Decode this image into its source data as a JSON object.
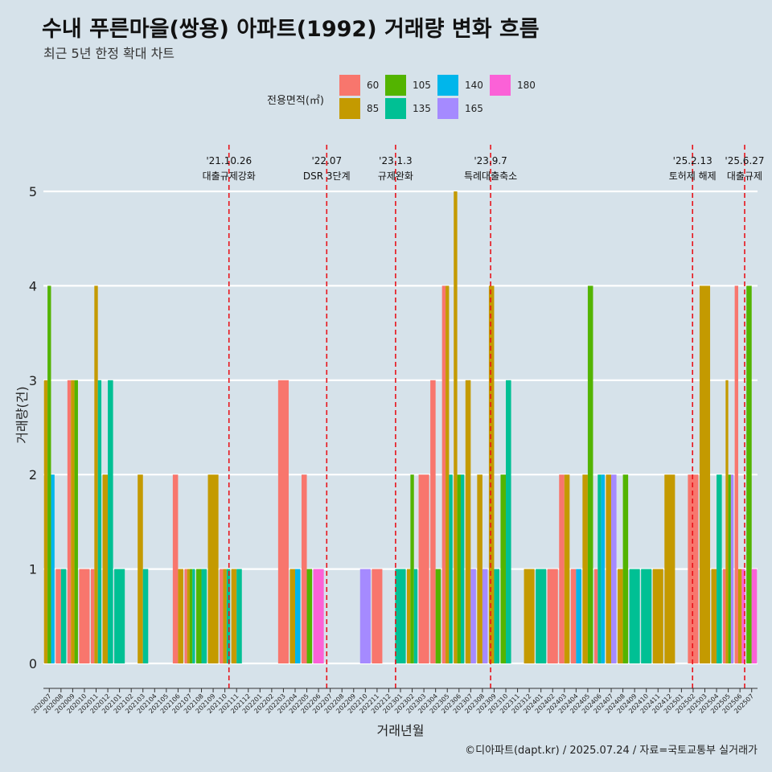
{
  "title": "수내 푸른마을(쌍용) 아파트(1992) 거래량 변화 흐름",
  "subtitle": "최근 5년 한정 확대 차트",
  "caption": "©디아파트(dapt.kr) / 2025.07.24 / 자료=국토교통부 실거래가",
  "legend": {
    "title": "전용면적(㎡)",
    "items": [
      {
        "label": "60",
        "color": "#f8766d"
      },
      {
        "label": "85",
        "color": "#c49a00"
      },
      {
        "label": "105",
        "color": "#53b400"
      },
      {
        "label": "135",
        "color": "#00c094"
      },
      {
        "label": "140",
        "color": "#00b6eb"
      },
      {
        "label": "165",
        "color": "#a58aff"
      },
      {
        "label": "180",
        "color": "#fb61d7"
      }
    ]
  },
  "chart_data": {
    "type": "bar",
    "xlabel": "거래년월",
    "ylabel": "거래량(건)",
    "ylim": [
      0,
      5
    ],
    "yticks": [
      0,
      1,
      2,
      3,
      4,
      5
    ],
    "grid": true,
    "categories": [
      "202007",
      "202008",
      "202009",
      "202010",
      "202011",
      "202012",
      "202101",
      "202102",
      "202103",
      "202104",
      "202105",
      "202106",
      "202107",
      "202108",
      "202109",
      "202110",
      "202111",
      "202112",
      "202201",
      "202202",
      "202203",
      "202204",
      "202205",
      "202206",
      "202207",
      "202208",
      "202209",
      "202210",
      "202211",
      "202212",
      "202301",
      "202302",
      "202303",
      "202304",
      "202305",
      "202306",
      "202307",
      "202308",
      "202309",
      "202310",
      "202311",
      "202312",
      "202401",
      "202402",
      "202403",
      "202404",
      "202405",
      "202406",
      "202407",
      "202408",
      "202409",
      "202410",
      "202411",
      "202412",
      "202501",
      "202502",
      "202503",
      "202504",
      "202505",
      "202506",
      "202507"
    ],
    "series": [
      {
        "name": "60",
        "values": [
          0,
          1,
          3,
          1,
          1,
          0,
          0,
          0,
          0,
          0,
          0,
          2,
          1,
          0,
          0,
          1,
          0,
          0,
          0,
          0,
          3,
          0,
          2,
          0,
          0,
          0,
          0,
          0,
          1,
          0,
          0,
          0,
          2,
          3,
          4,
          0,
          0,
          0,
          0,
          0,
          0,
          0,
          0,
          1,
          2,
          1,
          0,
          1,
          0,
          0,
          0,
          0,
          0,
          0,
          0,
          2,
          0,
          0,
          1,
          4,
          0
        ]
      },
      {
        "name": "85",
        "values": [
          3,
          0,
          3,
          0,
          4,
          2,
          0,
          0,
          2,
          0,
          0,
          1,
          1,
          0,
          2,
          1,
          1,
          0,
          0,
          0,
          0,
          1,
          0,
          0,
          0,
          0,
          0,
          0,
          0,
          0,
          0,
          1,
          0,
          0,
          4,
          5,
          3,
          2,
          4,
          0,
          0,
          1,
          0,
          0,
          2,
          0,
          2,
          0,
          2,
          1,
          0,
          0,
          1,
          2,
          0,
          0,
          4,
          1,
          3,
          1,
          0
        ]
      },
      {
        "name": "105",
        "values": [
          4,
          0,
          3,
          0,
          0,
          0,
          0,
          0,
          0,
          0,
          0,
          0,
          1,
          1,
          0,
          0,
          0,
          0,
          0,
          0,
          0,
          0,
          1,
          0,
          0,
          0,
          0,
          0,
          0,
          0,
          0,
          2,
          0,
          1,
          0,
          2,
          0,
          0,
          0,
          2,
          0,
          0,
          0,
          0,
          0,
          0,
          4,
          0,
          0,
          2,
          0,
          0,
          0,
          0,
          0,
          0,
          0,
          0,
          2,
          0,
          4
        ]
      },
      {
        "name": "135",
        "values": [
          0,
          1,
          0,
          0,
          3,
          3,
          1,
          0,
          1,
          0,
          0,
          0,
          1,
          1,
          0,
          1,
          1,
          0,
          0,
          0,
          0,
          0,
          0,
          0,
          0,
          0,
          0,
          0,
          0,
          0,
          1,
          1,
          0,
          0,
          2,
          2,
          0,
          0,
          1,
          3,
          0,
          0,
          1,
          0,
          0,
          0,
          0,
          2,
          0,
          0,
          1,
          1,
          0,
          0,
          0,
          0,
          0,
          2,
          0,
          0,
          0
        ]
      },
      {
        "name": "140",
        "values": [
          2,
          0,
          0,
          0,
          0,
          0,
          0,
          0,
          0,
          0,
          0,
          0,
          0,
          0,
          0,
          0,
          0,
          0,
          0,
          0,
          0,
          1,
          0,
          0,
          0,
          0,
          0,
          0,
          0,
          0,
          0,
          0,
          0,
          0,
          0,
          0,
          0,
          0,
          0,
          0,
          0,
          0,
          0,
          0,
          0,
          1,
          0,
          2,
          0,
          0,
          0,
          0,
          0,
          0,
          0,
          0,
          0,
          0,
          0,
          0,
          0
        ]
      },
      {
        "name": "165",
        "values": [
          0,
          0,
          0,
          0,
          0,
          0,
          0,
          0,
          0,
          0,
          0,
          0,
          0,
          0,
          0,
          0,
          0,
          0,
          0,
          0,
          0,
          0,
          0,
          0,
          0,
          0,
          0,
          1,
          0,
          0,
          0,
          0,
          0,
          0,
          0,
          0,
          1,
          1,
          0,
          0,
          0,
          0,
          0,
          0,
          0,
          0,
          0,
          0,
          2,
          0,
          0,
          0,
          0,
          0,
          0,
          0,
          0,
          0,
          2,
          0,
          0
        ]
      },
      {
        "name": "180",
        "values": [
          0,
          0,
          0,
          0,
          0,
          0,
          0,
          0,
          0,
          0,
          0,
          0,
          0,
          0,
          0,
          0,
          0,
          0,
          0,
          0,
          0,
          0,
          0,
          1,
          0,
          0,
          0,
          0,
          0,
          0,
          0,
          0,
          0,
          0,
          0,
          0,
          0,
          0,
          0,
          0,
          0,
          0,
          0,
          0,
          0,
          0,
          0,
          0,
          0,
          0,
          0,
          0,
          0,
          0,
          0,
          0,
          0,
          0,
          0,
          1,
          1
        ]
      }
    ],
    "annotations": [
      {
        "x": "202110",
        "x_fraction": 0.85,
        "date": "'21.10.26",
        "text": "대출규제강화"
      },
      {
        "x": "202207",
        "x_fraction": 0.2,
        "date": "'22.07",
        "text": "DSR 3단계"
      },
      {
        "x": "202301",
        "x_fraction": 0.08,
        "date": "'23.1.3",
        "text": "규제완화"
      },
      {
        "x": "202309",
        "x_fraction": 0.2,
        "date": "'23.9.7",
        "text": "특례대출축소"
      },
      {
        "x": "202502",
        "x_fraction": 0.45,
        "date": "'25.2.13",
        "text": "토허제 해제"
      },
      {
        "x": "202506",
        "x_fraction": 0.9,
        "date": "'25.6.27",
        "text": "대출규제"
      }
    ]
  }
}
